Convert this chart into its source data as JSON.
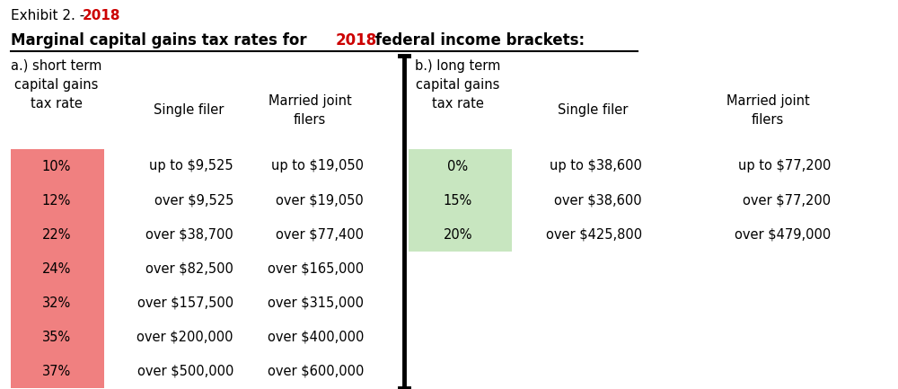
{
  "title_exhibit": "Exhibit 2. - ",
  "title_year": "2018",
  "subtitle_plain": "Marginal capital gains tax rates for ",
  "subtitle_year": "2018",
  "subtitle_end": " federal income brackets:",
  "section_a_header": "a.) short term\ncapital gains\ntax rate",
  "section_b_header": "b.) long term\ncapital gains\ntax rate",
  "col_single": "Single filer",
  "col_married": "Married joint\nfilers",
  "short_term_rates": [
    "10%",
    "12%",
    "22%",
    "24%",
    "32%",
    "35%",
    "37%"
  ],
  "short_term_single": [
    "up to $9,525",
    "over $9,525",
    "over $38,700",
    "over $82,500",
    "over $157,500",
    "over $200,000",
    "over $500,000"
  ],
  "short_term_married": [
    "up to $19,050",
    "over $19,050",
    "over $77,400",
    "over $165,000",
    "over $315,000",
    "over $400,000",
    "over $600,000"
  ],
  "long_term_rates": [
    "0%",
    "15%",
    "20%"
  ],
  "long_term_single": [
    "up to $38,600",
    "over $38,600",
    "over $425,800"
  ],
  "long_term_married": [
    "up to $77,200",
    "over $77,200",
    "over $479,000"
  ],
  "short_term_bg": "#f08080",
  "long_term_bg": "#c8e6c0",
  "red_text": "#cc0000",
  "title_color": "#000000",
  "fig_bg": "#ffffff"
}
